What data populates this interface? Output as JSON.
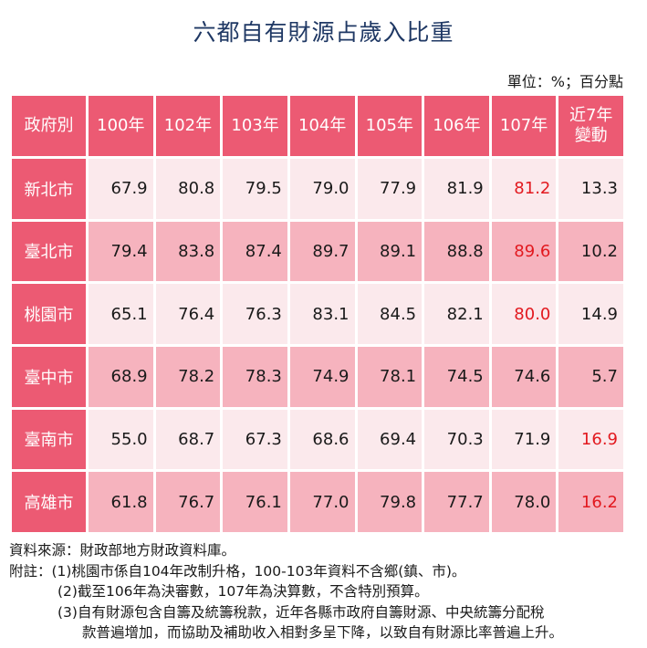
{
  "title": "六都自有財源占歲入比重",
  "unit": "單位：%；百分點",
  "table": {
    "headers": [
      "政府別",
      "100年",
      "102年",
      "103年",
      "104年",
      "105年",
      "106年",
      "107年",
      "近7年\n變動"
    ],
    "rows": [
      {
        "label": "新北市",
        "values": [
          "67.9",
          "80.8",
          "79.5",
          "79.0",
          "77.9",
          "81.9",
          "81.2",
          "13.3"
        ],
        "highlight": [
          6
        ]
      },
      {
        "label": "臺北市",
        "values": [
          "79.4",
          "83.8",
          "87.4",
          "89.7",
          "89.1",
          "88.8",
          "89.6",
          "10.2"
        ],
        "highlight": [
          6
        ]
      },
      {
        "label": "桃園市",
        "values": [
          "65.1",
          "76.4",
          "76.3",
          "83.1",
          "84.5",
          "82.1",
          "80.0",
          "14.9"
        ],
        "highlight": [
          6
        ]
      },
      {
        "label": "臺中市",
        "values": [
          "68.9",
          "78.2",
          "78.3",
          "74.9",
          "78.1",
          "74.5",
          "74.6",
          "5.7"
        ],
        "highlight": []
      },
      {
        "label": "臺南市",
        "values": [
          "55.0",
          "68.7",
          "67.3",
          "68.6",
          "69.4",
          "70.3",
          "71.9",
          "16.9"
        ],
        "highlight": [
          7
        ]
      },
      {
        "label": "高雄市",
        "values": [
          "61.8",
          "76.7",
          "76.1",
          "77.0",
          "79.8",
          "77.7",
          "78.0",
          "16.2"
        ],
        "highlight": [
          7
        ]
      }
    ]
  },
  "notes": {
    "source": "資料來源：財政部地方財政資料庫。",
    "note1": "附註：(1)桃園市係自104年改制升格，100-103年資料不含鄉(鎮、市)。",
    "note2": "(2)截至106年為決審數，107年為決算數，不含特別預算。",
    "note3a": "(3)自有財源包含自籌及統籌稅款，近年各縣市政府自籌財源、中央統籌分配稅",
    "note3b": "款普遍增加，而協助及補助收入相對多呈下降，以致自有財源比率普遍上升。"
  },
  "colors": {
    "header_bg": "#ec5a73",
    "row_light": "#fbe9ec",
    "row_dark": "#f6b3be",
    "highlight_text": "#e2191f",
    "title": "#1f3864"
  }
}
